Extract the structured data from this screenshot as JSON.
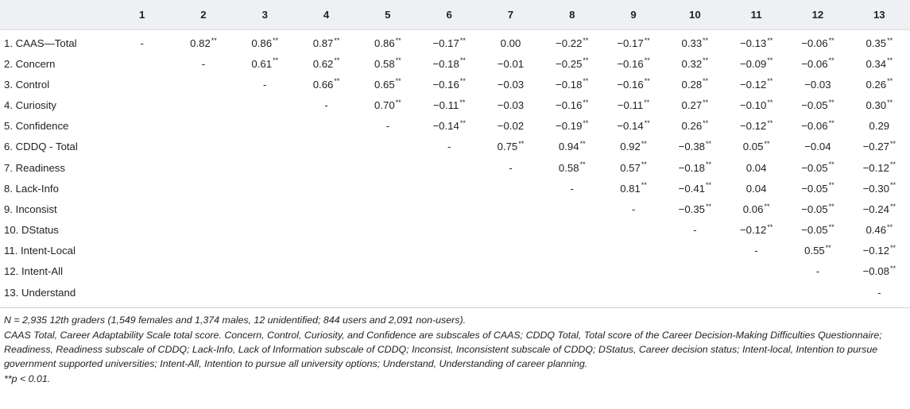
{
  "table": {
    "header_blank": "",
    "columns": [
      "1",
      "2",
      "3",
      "4",
      "5",
      "6",
      "7",
      "8",
      "9",
      "10",
      "11",
      "12",
      "13"
    ],
    "rows": [
      {
        "label": "1.  CAAS—Total",
        "cells": [
          "-",
          "0.82**",
          "0.86**",
          "0.87**",
          "0.86**",
          "−0.17**",
          "0.00",
          "−0.22**",
          "−0.17**",
          "0.33**",
          "−0.13**",
          "−0.06**",
          "0.35**"
        ]
      },
      {
        "label": "2.  Concern",
        "cells": [
          "",
          "-",
          "0.61**",
          "0.62**",
          "0.58**",
          "−0.18**",
          "−0.01",
          "−0.25**",
          "−0.16**",
          "0.32**",
          "−0.09**",
          "−0.06**",
          "0.34**"
        ]
      },
      {
        "label": "3.  Control",
        "cells": [
          "",
          "",
          "-",
          "0.66**",
          "0.65**",
          "−0.16**",
          "−0.03",
          "−0.18**",
          "−0.16**",
          "0.28**",
          "−0.12**",
          "−0.03",
          "0.26**"
        ]
      },
      {
        "label": "4.  Curiosity",
        "cells": [
          "",
          "",
          "",
          "-",
          "0.70**",
          "−0.11**",
          "−0.03",
          "−0.16**",
          "−0.11**",
          "0.27**",
          "−0.10**",
          "−0.05**",
          "0.30**"
        ]
      },
      {
        "label": "5.  Confidence",
        "cells": [
          "",
          "",
          "",
          "",
          "-",
          "−0.14**",
          "−0.02",
          "−0.19**",
          "−0.14**",
          "0.26**",
          "−0.12**",
          "−0.06**",
          "0.29"
        ]
      },
      {
        "label": "6.  CDDQ - Total",
        "cells": [
          "",
          "",
          "",
          "",
          "",
          "-",
          "0.75**",
          "0.94**",
          "0.92**",
          "−0.38**",
          "0.05**",
          "−0.04",
          "−0.27**"
        ]
      },
      {
        "label": "7.  Readiness",
        "cells": [
          "",
          "",
          "",
          "",
          "",
          "",
          "-",
          "0.58**",
          "0.57**",
          "−0.18**",
          "0.04",
          "−0.05**",
          "−0.12**"
        ]
      },
      {
        "label": "8.  Lack-Info",
        "cells": [
          "",
          "",
          "",
          "",
          "",
          "",
          "",
          "-",
          "0.81**",
          "−0.41**",
          "0.04",
          "−0.05**",
          "−0.30**"
        ]
      },
      {
        "label": "9.  Inconsist",
        "cells": [
          "",
          "",
          "",
          "",
          "",
          "",
          "",
          "",
          "-",
          "−0.35**",
          "0.06**",
          "−0.05**",
          "−0.24**"
        ]
      },
      {
        "label": "10.  DStatus",
        "cells": [
          "",
          "",
          "",
          "",
          "",
          "",
          "",
          "",
          "",
          "-",
          "−0.12**",
          "−0.05**",
          "0.46**"
        ]
      },
      {
        "label": "11.  Intent-Local",
        "cells": [
          "",
          "",
          "",
          "",
          "",
          "",
          "",
          "",
          "",
          "",
          "-",
          "0.55**",
          "−0.12**"
        ]
      },
      {
        "label": "12.  Intent-All",
        "cells": [
          "",
          "",
          "",
          "",
          "",
          "",
          "",
          "",
          "",
          "",
          "",
          "-",
          "−0.08**"
        ]
      },
      {
        "label": "13.  Understand",
        "cells": [
          "",
          "",
          "",
          "",
          "",
          "",
          "",
          "",
          "",
          "",
          "",
          "",
          "-"
        ]
      }
    ]
  },
  "notes": {
    "n_line": "N = 2,935 12th graders (1,549 females and 1,374 males, 12 unidentified; 844 users and 2,091 non-users).",
    "abbrev_line": "CAAS Total, Career Adaptability Scale total score. Concern, Control, Curiosity, and Confidence are subscales of CAAS; CDDQ Total, Total score of the Career Decision-Making Difficulties Questionnaire; Readiness, Readiness subscale of CDDQ; Lack-Info, Lack of Information subscale of CDDQ; Inconsist, Inconsistent subscale of CDDQ; DStatus, Career decision status; Intent-local, Intention to pursue government supported universities; Intent-All, Intention to pursue all university options; Understand, Understanding of career planning.",
    "p_line": "**p < 0.01."
  }
}
